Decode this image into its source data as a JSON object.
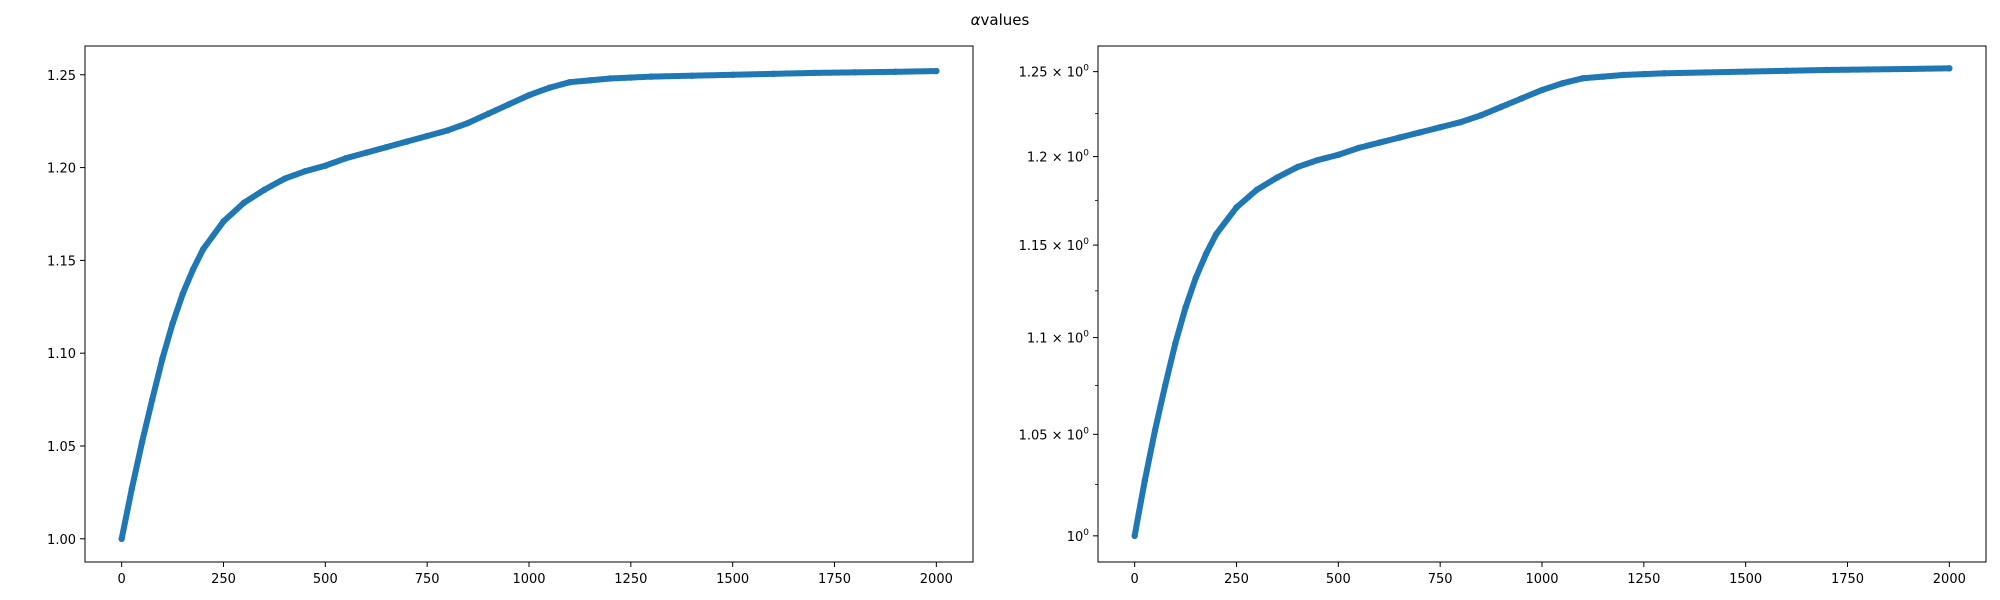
{
  "figure": {
    "alpha_symbol": "α",
    "title_text": "values"
  },
  "chart_data": [
    {
      "type": "scatter",
      "yscale": "linear",
      "color": "#1f77b4",
      "xlim": [
        -90,
        2090
      ],
      "ylim": [
        0.9875,
        1.2655
      ],
      "x_ticks": [
        0,
        250,
        500,
        750,
        1000,
        1250,
        1500,
        1750,
        2000
      ],
      "x_tick_labels": [
        "0",
        "250",
        "500",
        "750",
        "1000",
        "1250",
        "1500",
        "1750",
        "2000"
      ],
      "y_ticks": [
        1.0,
        1.05,
        1.1,
        1.15,
        1.2,
        1.25
      ],
      "y_tick_labels": [
        {
          "base": "1.00"
        },
        {
          "base": "1.05"
        },
        {
          "base": "1.10"
        },
        {
          "base": "1.15"
        },
        {
          "base": "1.20"
        },
        {
          "base": "1.25"
        }
      ],
      "x": [
        0,
        25,
        50,
        75,
        100,
        125,
        150,
        175,
        200,
        250,
        300,
        350,
        400,
        450,
        500,
        550,
        600,
        650,
        700,
        750,
        800,
        850,
        900,
        950,
        1000,
        1050,
        1100,
        1150,
        1200,
        1250,
        1300,
        1400,
        1500,
        1600,
        1700,
        1800,
        1900,
        2000
      ],
      "y": [
        1.0,
        1.027,
        1.052,
        1.075,
        1.097,
        1.116,
        1.132,
        1.145,
        1.156,
        1.171,
        1.181,
        1.188,
        1.194,
        1.198,
        1.201,
        1.205,
        1.208,
        1.211,
        1.214,
        1.217,
        1.22,
        1.224,
        1.229,
        1.234,
        1.239,
        1.243,
        1.246,
        1.247,
        1.248,
        1.2485,
        1.249,
        1.2495,
        1.25,
        1.2505,
        1.251,
        1.2513,
        1.2516,
        1.252
      ]
    },
    {
      "type": "scatter",
      "yscale": "log",
      "color": "#1f77b4",
      "xlim": [
        -90,
        2090
      ],
      "ylim": [
        0.9875,
        1.2655
      ],
      "x_ticks": [
        0,
        250,
        500,
        750,
        1000,
        1250,
        1500,
        1750,
        2000
      ],
      "x_tick_labels": [
        "0",
        "250",
        "500",
        "750",
        "1000",
        "1250",
        "1500",
        "1750",
        "2000"
      ],
      "y_ticks": [
        1.0,
        1.05,
        1.1,
        1.15,
        1.2,
        1.25
      ],
      "y_tick_labels": [
        {
          "base": "10",
          "exp": "0"
        },
        {
          "base": "1.05 × 10",
          "exp": "0"
        },
        {
          "base": "1.1 × 10",
          "exp": "0"
        },
        {
          "base": "1.15 × 10",
          "exp": "0"
        },
        {
          "base": "1.2 × 10",
          "exp": "0"
        },
        {
          "base": "1.25 × 10",
          "exp": "0"
        }
      ],
      "x": [
        0,
        25,
        50,
        75,
        100,
        125,
        150,
        175,
        200,
        250,
        300,
        350,
        400,
        450,
        500,
        550,
        600,
        650,
        700,
        750,
        800,
        850,
        900,
        950,
        1000,
        1050,
        1100,
        1150,
        1200,
        1250,
        1300,
        1400,
        1500,
        1600,
        1700,
        1800,
        1900,
        2000
      ],
      "y": [
        1.0,
        1.027,
        1.052,
        1.075,
        1.097,
        1.116,
        1.132,
        1.145,
        1.156,
        1.171,
        1.181,
        1.188,
        1.194,
        1.198,
        1.201,
        1.205,
        1.208,
        1.211,
        1.214,
        1.217,
        1.22,
        1.224,
        1.229,
        1.234,
        1.239,
        1.243,
        1.246,
        1.247,
        1.248,
        1.2485,
        1.249,
        1.2495,
        1.25,
        1.2505,
        1.251,
        1.2513,
        1.2516,
        1.252
      ]
    }
  ]
}
